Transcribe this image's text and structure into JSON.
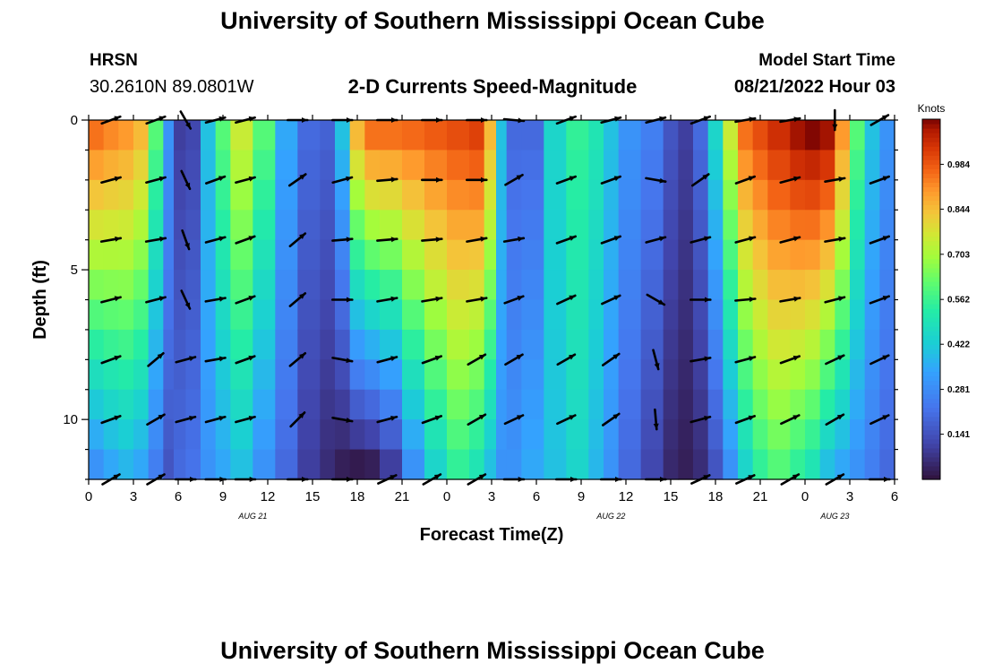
{
  "header": {
    "title": "University of Southern Mississippi Ocean Cube",
    "station_code": "HRSN",
    "station_coords": "30.2610N  89.0801W",
    "plot_title": "2-D Currents Speed-Magnitude",
    "model_label": "Model Start Time",
    "model_time": "08/21/2022 Hour 03"
  },
  "footer": {
    "title": "University of Southern Mississippi Ocean Cube"
  },
  "chart_data": {
    "type": "heatmap",
    "title": "2-D Currents Speed-Magnitude",
    "xlabel": "Forecast Time(Z)",
    "ylabel": "Depth (ft)",
    "xlim": [
      0,
      54
    ],
    "ylim": [
      0,
      12
    ],
    "y_reversed": true,
    "x_tick_labels": [
      "0",
      "3",
      "6",
      "9",
      "12",
      "15",
      "18",
      "21",
      "0",
      "3",
      "6",
      "9",
      "12",
      "15",
      "18",
      "21",
      "0",
      "3",
      "6"
    ],
    "y_tick_labels": [
      "0",
      "5",
      "10"
    ],
    "date_labels": [
      {
        "label": "AUG 21",
        "hour": 11
      },
      {
        "label": "AUG 22",
        "hour": 35
      },
      {
        "label": "AUG 23",
        "hour": 50
      }
    ],
    "colorbar": {
      "label": "Knots",
      "ticks": [
        "0.984",
        "0.844",
        "0.703",
        "0.562",
        "0.422",
        "0.281",
        "0.141"
      ],
      "tick_values": [
        0.984,
        0.844,
        0.703,
        0.562,
        0.422,
        0.281,
        0.141
      ],
      "range": [
        0,
        1.125
      ]
    },
    "depths": [
      0.5,
      1.5,
      2.5,
      3.5,
      4.5,
      5.5,
      6.5,
      7.5,
      8.5,
      9.5,
      10.5,
      11.5
    ],
    "speed_profile": {
      "hours": [
        0,
        1,
        2,
        3,
        4,
        5,
        5.7,
        6.5,
        7.5,
        8.5,
        9.5,
        11,
        12.5,
        14,
        15.5,
        16.5,
        17.5,
        18.5,
        19.5,
        21,
        22.5,
        24,
        25.5,
        26.5,
        27.3,
        28,
        29,
        30.5,
        32,
        33.5,
        34.5,
        35.5,
        37,
        38.5,
        39.5,
        40.5,
        41.5,
        42.5,
        43.5,
        44.5,
        45.5,
        47,
        48,
        49,
        50,
        51,
        52,
        53,
        54
      ],
      "surface": [
        0.95,
        0.92,
        0.9,
        0.85,
        0.6,
        0.3,
        0.1,
        0.12,
        0.4,
        0.6,
        0.75,
        0.6,
        0.35,
        0.2,
        0.18,
        0.4,
        0.85,
        0.95,
        0.95,
        0.96,
        0.98,
        1.0,
        1.02,
        0.85,
        0.4,
        0.2,
        0.2,
        0.45,
        0.55,
        0.5,
        0.4,
        0.3,
        0.25,
        0.15,
        0.1,
        0.2,
        0.45,
        0.75,
        0.95,
        1.0,
        1.05,
        1.1,
        1.12,
        1.1,
        0.9,
        0.6,
        0.4,
        0.3,
        0.2
      ],
      "bottom": [
        0.3,
        0.35,
        0.38,
        0.35,
        0.25,
        0.15,
        0.2,
        0.22,
        0.3,
        0.35,
        0.4,
        0.3,
        0.2,
        0.1,
        0.06,
        0.03,
        0.02,
        0.03,
        0.1,
        0.3,
        0.45,
        0.55,
        0.5,
        0.4,
        0.3,
        0.3,
        0.35,
        0.4,
        0.45,
        0.38,
        0.3,
        0.2,
        0.12,
        0.05,
        0.03,
        0.06,
        0.15,
        0.3,
        0.45,
        0.55,
        0.6,
        0.55,
        0.5,
        0.4,
        0.35,
        0.3,
        0.25,
        0.2,
        0.15
      ]
    },
    "vector_rows_depth": [
      0,
      2,
      4,
      6,
      8,
      10,
      12
    ],
    "vector_columns_hour": [
      1.5,
      4.5,
      6.5,
      8.5,
      10.5,
      14,
      17,
      20,
      23,
      26,
      28.5,
      32,
      35,
      38,
      41,
      44,
      47,
      50,
      53
    ],
    "vector_directions_deg": [
      [
        20,
        20,
        -60,
        15,
        15,
        0,
        0,
        0,
        0,
        0,
        -5,
        20,
        15,
        15,
        20,
        10,
        10,
        -90,
        30
      ],
      [
        15,
        15,
        -65,
        20,
        15,
        35,
        15,
        5,
        0,
        0,
        30,
        20,
        20,
        -10,
        35,
        20,
        15,
        10,
        20
      ],
      [
        10,
        10,
        -70,
        15,
        20,
        40,
        5,
        5,
        5,
        10,
        10,
        20,
        20,
        15,
        15,
        15,
        15,
        10,
        20
      ],
      [
        15,
        15,
        -65,
        10,
        20,
        40,
        0,
        10,
        10,
        10,
        20,
        25,
        25,
        -30,
        0,
        5,
        10,
        15,
        20
      ],
      [
        20,
        40,
        15,
        10,
        20,
        40,
        -10,
        15,
        20,
        30,
        30,
        30,
        35,
        -75,
        10,
        15,
        20,
        25,
        25
      ],
      [
        20,
        30,
        15,
        15,
        15,
        45,
        -10,
        15,
        20,
        30,
        25,
        25,
        35,
        -85,
        15,
        20,
        25,
        30,
        25
      ],
      [
        30,
        30,
        0,
        0,
        0,
        0,
        0,
        25,
        30,
        30,
        0,
        0,
        0,
        0,
        25,
        25,
        30,
        30,
        0
      ]
    ]
  }
}
